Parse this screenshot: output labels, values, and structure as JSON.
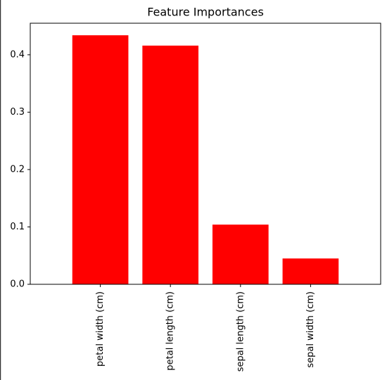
{
  "chart_data": {
    "type": "bar",
    "title": "Feature Importances",
    "categories": [
      "petal width (cm)",
      "petal length (cm)",
      "sepal length (cm)",
      "sepal width (cm)"
    ],
    "values": [
      0.434,
      0.416,
      0.104,
      0.045
    ],
    "color": "#ff0000",
    "ylim": [
      0,
      0.455
    ],
    "yticks": [
      0.0,
      0.1,
      0.2,
      0.3,
      0.4
    ],
    "grid": false
  }
}
